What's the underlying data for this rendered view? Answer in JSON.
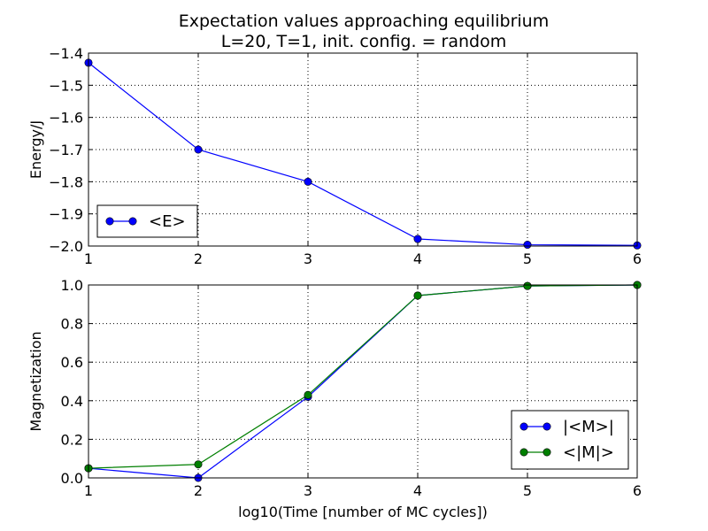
{
  "figure": {
    "title_line1": "Expectation values approaching equilibrium",
    "title_line2": "L=20, T=1, init. config. = random"
  },
  "chart_data": [
    {
      "type": "line",
      "xlabel": "",
      "ylabel": "Energy/J",
      "xlim": [
        1,
        6
      ],
      "ylim": [
        -2.0,
        -1.4
      ],
      "xticks": [
        1,
        2,
        3,
        4,
        5,
        6
      ],
      "yticks": [
        -2.0,
        -1.9,
        -1.8,
        -1.7,
        -1.6,
        -1.5,
        -1.4
      ],
      "x_tick_labels": [
        "1",
        "2",
        "3",
        "4",
        "5",
        "6"
      ],
      "y_tick_labels": [
        "−2.0",
        "−1.9",
        "−1.8",
        "−1.7",
        "−1.6",
        "−1.5",
        "−1.4"
      ],
      "grid": true,
      "legend_position": "lower-left",
      "series": [
        {
          "name": "<E>",
          "color": "#0000ff",
          "x": [
            1,
            2,
            3,
            4,
            5,
            6
          ],
          "y": [
            -1.43,
            -1.7,
            -1.8,
            -1.978,
            -1.996,
            -1.998
          ]
        }
      ]
    },
    {
      "type": "line",
      "xlabel": "log10(Time [number of MC cycles])",
      "ylabel": "Magnetization",
      "xlim": [
        1,
        6
      ],
      "ylim": [
        0.0,
        1.0
      ],
      "xticks": [
        1,
        2,
        3,
        4,
        5,
        6
      ],
      "yticks": [
        0.0,
        0.2,
        0.4,
        0.6,
        0.8,
        1.0
      ],
      "x_tick_labels": [
        "1",
        "2",
        "3",
        "4",
        "5",
        "6"
      ],
      "y_tick_labels": [
        "0.0",
        "0.2",
        "0.4",
        "0.6",
        "0.8",
        "1.0"
      ],
      "grid": true,
      "legend_position": "lower-right",
      "series": [
        {
          "name": "|<M>|",
          "color": "#0000ff",
          "x": [
            1,
            2,
            3,
            4,
            5,
            6
          ],
          "y": [
            0.05,
            0.0,
            0.42,
            0.945,
            0.995,
            1.0
          ]
        },
        {
          "name": "<|M|>",
          "color": "#007f00",
          "x": [
            1,
            2,
            3,
            4,
            5,
            6
          ],
          "y": [
            0.05,
            0.07,
            0.43,
            0.945,
            0.995,
            1.0
          ]
        }
      ]
    }
  ]
}
